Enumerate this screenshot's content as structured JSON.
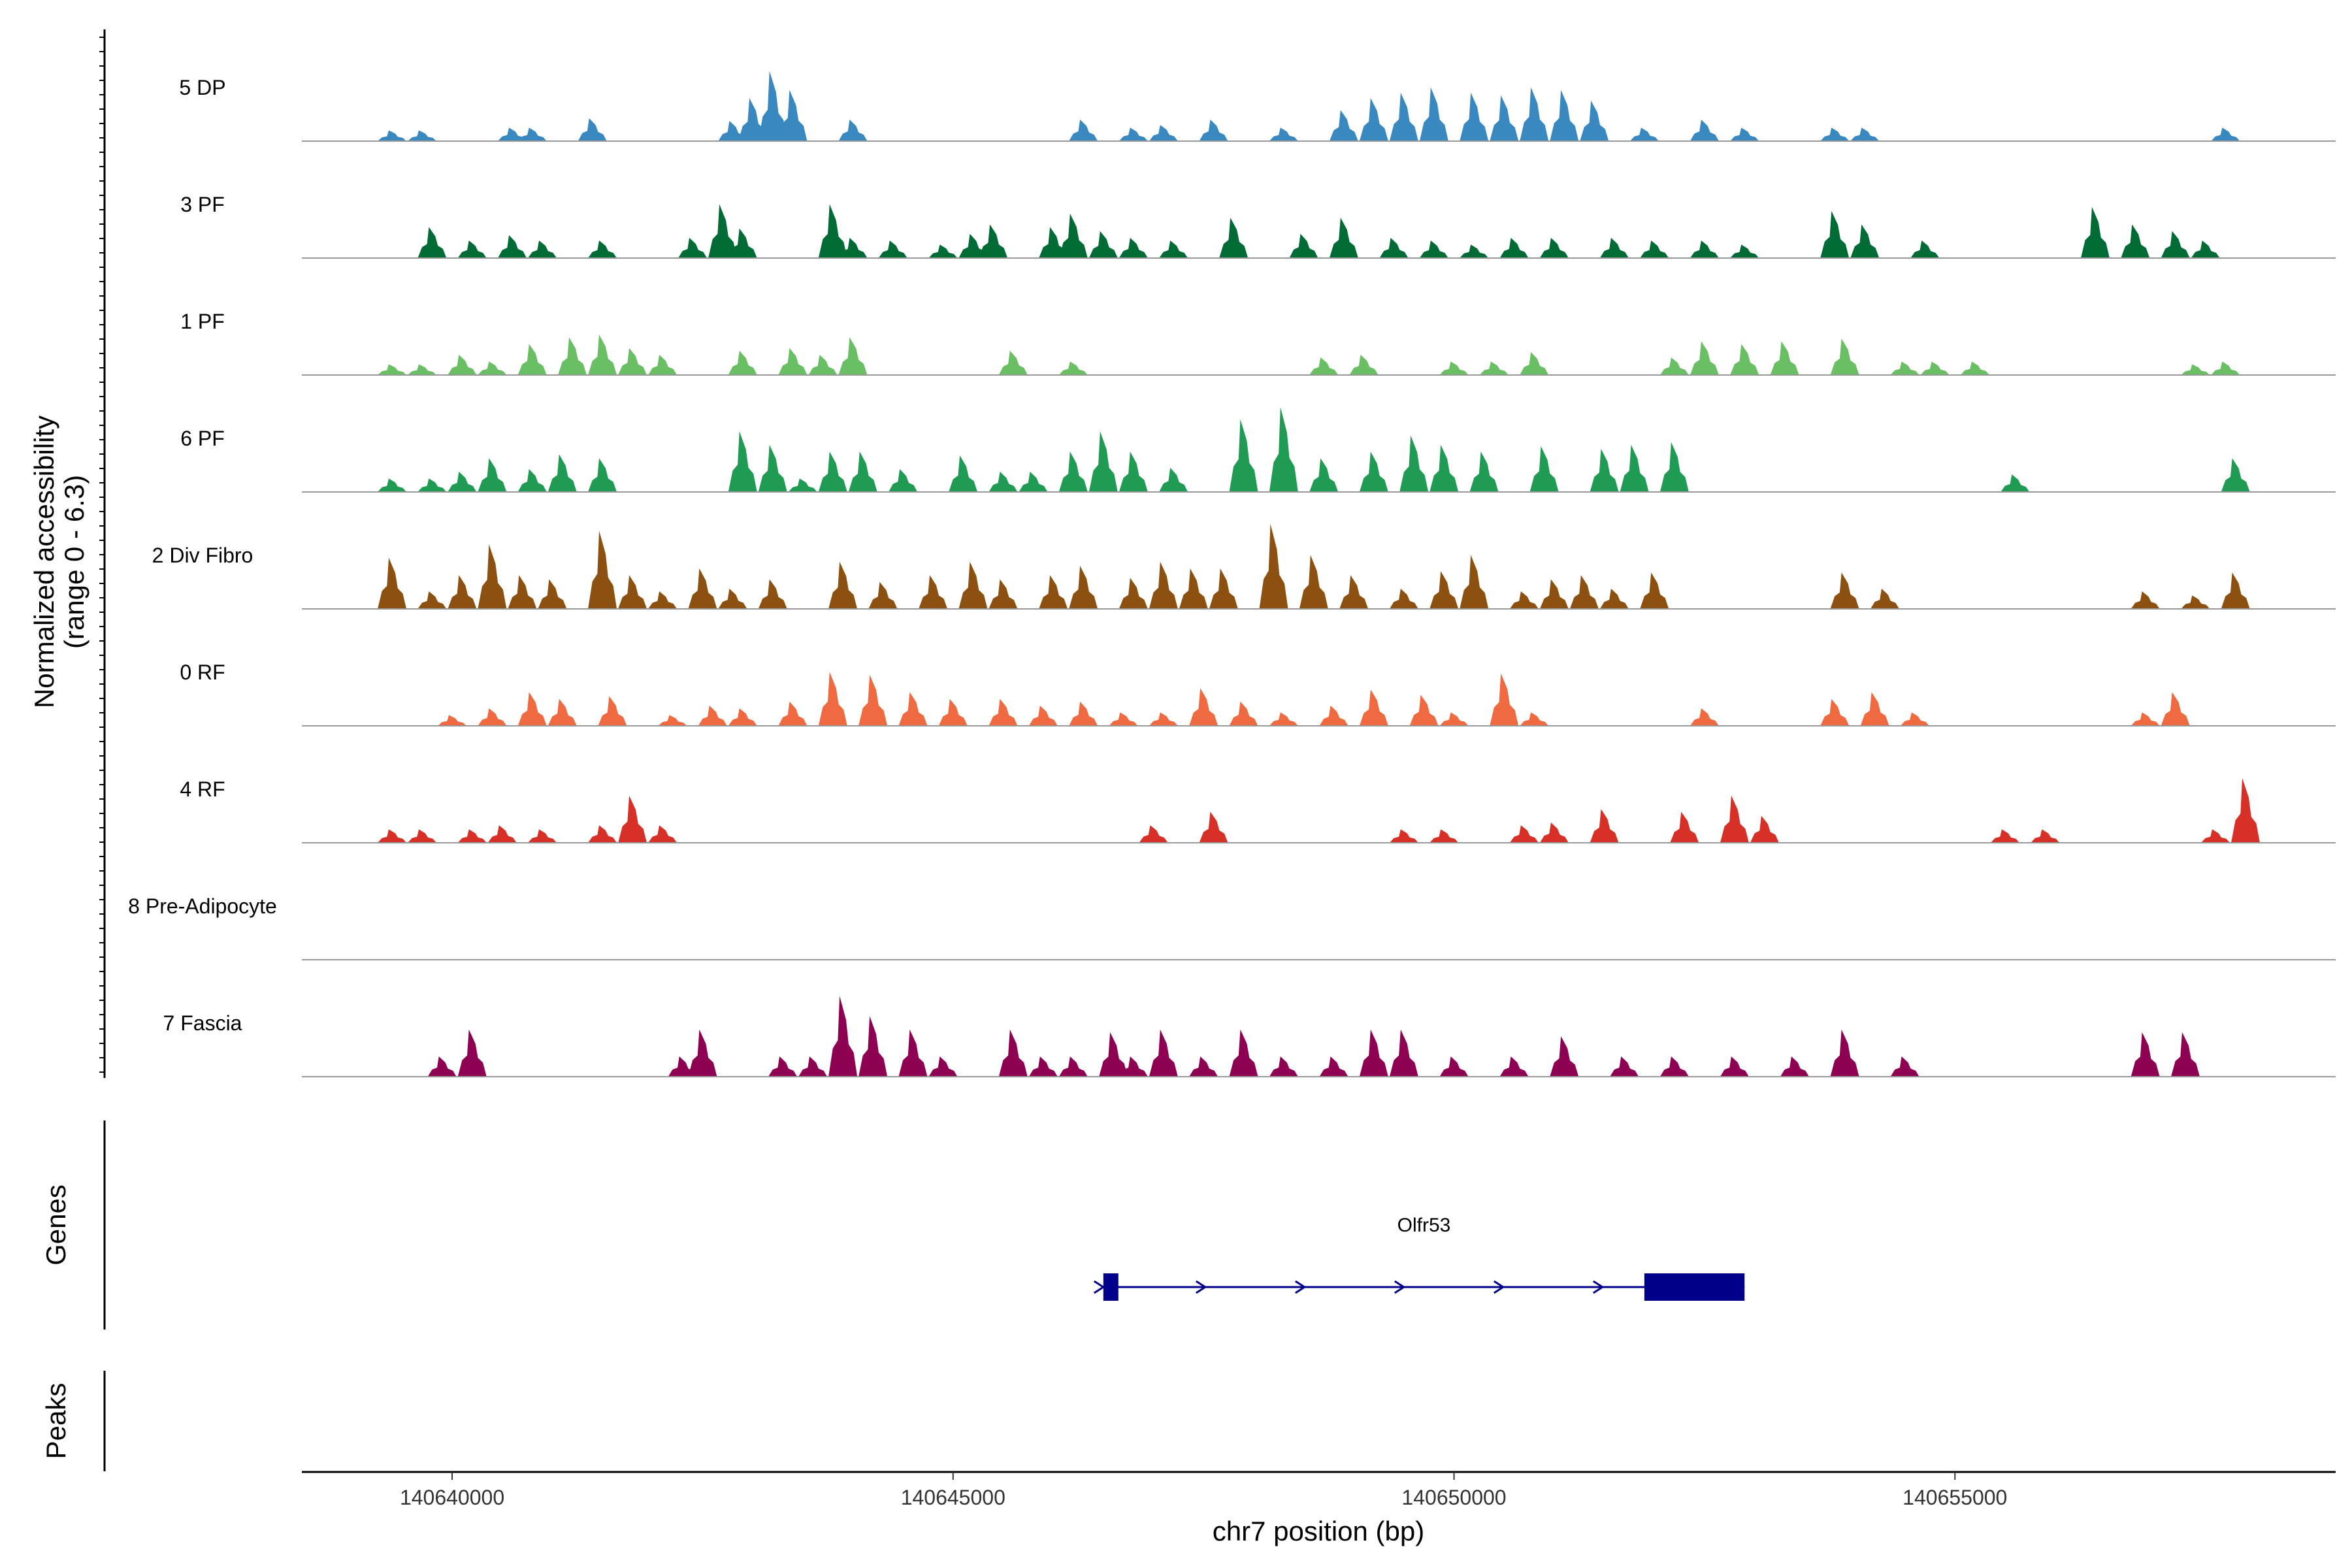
{
  "chart_data": {
    "type": "area",
    "title": "",
    "ylabel_line1": "Normalized accessibility",
    "ylabel_line2": "(range 0 - 6.3)",
    "ylim": [
      0,
      6.3
    ],
    "xlabel": "chr7 position (bp)",
    "xlim": [
      140638500,
      140658800
    ],
    "xticks": [
      {
        "value": 140640000,
        "label": "140640000"
      },
      {
        "value": 140645000,
        "label": "140645000"
      },
      {
        "value": 140650000,
        "label": "140650000"
      },
      {
        "value": 140655000,
        "label": "140655000"
      }
    ],
    "series": [
      {
        "name": "5 DP",
        "color": "#3A88C0",
        "peaks": [
          [
            140639400,
            0.8
          ],
          [
            140639700,
            0.8
          ],
          [
            140640600,
            1.0
          ],
          [
            140640800,
            1.0
          ],
          [
            140641400,
            1.7
          ],
          [
            140642800,
            1.5
          ],
          [
            140643000,
            3.2
          ],
          [
            140643200,
            5.2
          ],
          [
            140643400,
            3.8
          ],
          [
            140644000,
            1.6
          ],
          [
            140646300,
            1.6
          ],
          [
            140646800,
            1.0
          ],
          [
            140647100,
            1.2
          ],
          [
            140647600,
            1.6
          ],
          [
            140648300,
            1.0
          ],
          [
            140648900,
            2.3
          ],
          [
            140649200,
            3.2
          ],
          [
            140649500,
            3.6
          ],
          [
            140649800,
            4.0
          ],
          [
            140650200,
            3.6
          ],
          [
            140650500,
            3.4
          ],
          [
            140650800,
            4.0
          ],
          [
            140651100,
            3.8
          ],
          [
            140651400,
            3.0
          ],
          [
            140651900,
            1.0
          ],
          [
            140652500,
            1.6
          ],
          [
            140652900,
            1.0
          ],
          [
            140653800,
            1.0
          ],
          [
            140654100,
            1.0
          ],
          [
            140657700,
            1.0
          ]
        ]
      },
      {
        "name": "3 PF",
        "color": "#006B34",
        "peaks": [
          [
            140639800,
            2.3
          ],
          [
            140640200,
            1.3
          ],
          [
            140640600,
            1.7
          ],
          [
            140640900,
            1.3
          ],
          [
            140641500,
            1.3
          ],
          [
            140642400,
            1.5
          ],
          [
            140642700,
            4.0
          ],
          [
            140642900,
            2.2
          ],
          [
            140643800,
            4.0
          ],
          [
            140644000,
            1.5
          ],
          [
            140644400,
            1.3
          ],
          [
            140644900,
            1.0
          ],
          [
            140645200,
            1.8
          ],
          [
            140645400,
            2.5
          ],
          [
            140646000,
            2.3
          ],
          [
            140646200,
            3.3
          ],
          [
            140646500,
            2.0
          ],
          [
            140646800,
            1.5
          ],
          [
            140647200,
            1.3
          ],
          [
            140647800,
            3.0
          ],
          [
            140648500,
            1.8
          ],
          [
            140648900,
            3.0
          ],
          [
            140649400,
            1.5
          ],
          [
            140649800,
            1.3
          ],
          [
            140650200,
            1.0
          ],
          [
            140650600,
            1.5
          ],
          [
            140651000,
            1.5
          ],
          [
            140651600,
            1.5
          ],
          [
            140652000,
            1.3
          ],
          [
            140652500,
            1.3
          ],
          [
            140652900,
            1.0
          ],
          [
            140653800,
            3.5
          ],
          [
            140654100,
            2.5
          ],
          [
            140654700,
            1.3
          ],
          [
            140656400,
            3.8
          ],
          [
            140656800,
            2.5
          ],
          [
            140657200,
            2.0
          ],
          [
            140657500,
            1.3
          ]
        ]
      },
      {
        "name": "1 PF",
        "color": "#6ABE63",
        "peaks": [
          [
            140639400,
            0.8
          ],
          [
            140639700,
            0.8
          ],
          [
            140640100,
            1.5
          ],
          [
            140640400,
            1.0
          ],
          [
            140640800,
            2.3
          ],
          [
            140641200,
            2.8
          ],
          [
            140641500,
            3.0
          ],
          [
            140641800,
            2.0
          ],
          [
            140642100,
            1.5
          ],
          [
            140642900,
            1.8
          ],
          [
            140643400,
            2.0
          ],
          [
            140643700,
            1.5
          ],
          [
            140644000,
            2.8
          ],
          [
            140645600,
            1.8
          ],
          [
            140646200,
            1.0
          ],
          [
            140648700,
            1.3
          ],
          [
            140649100,
            1.5
          ],
          [
            140650000,
            1.0
          ],
          [
            140650400,
            1.0
          ],
          [
            140650800,
            1.7
          ],
          [
            140652200,
            1.3
          ],
          [
            140652500,
            2.5
          ],
          [
            140652900,
            2.3
          ],
          [
            140653300,
            2.5
          ],
          [
            140653900,
            2.7
          ],
          [
            140654500,
            1.0
          ],
          [
            140654800,
            1.0
          ],
          [
            140655200,
            1.0
          ],
          [
            140657400,
            0.8
          ],
          [
            140657700,
            1.0
          ]
        ]
      },
      {
        "name": "6 PF",
        "color": "#209B53",
        "peaks": [
          [
            140639400,
            1.0
          ],
          [
            140639800,
            1.0
          ],
          [
            140640100,
            1.5
          ],
          [
            140640400,
            2.5
          ],
          [
            140640800,
            1.7
          ],
          [
            140641100,
            2.8
          ],
          [
            140641500,
            2.5
          ],
          [
            140642900,
            4.5
          ],
          [
            140643200,
            3.5
          ],
          [
            140643500,
            1.0
          ],
          [
            140643800,
            3.0
          ],
          [
            140644100,
            3.0
          ],
          [
            140644500,
            1.7
          ],
          [
            140645100,
            2.7
          ],
          [
            140645500,
            1.5
          ],
          [
            140645800,
            1.5
          ],
          [
            140646200,
            3.0
          ],
          [
            140646500,
            4.5
          ],
          [
            140646800,
            3.0
          ],
          [
            140647200,
            1.8
          ],
          [
            140647900,
            5.4
          ],
          [
            140648300,
            6.3
          ],
          [
            140648700,
            2.5
          ],
          [
            140649200,
            3.0
          ],
          [
            140649600,
            4.2
          ],
          [
            140649900,
            3.5
          ],
          [
            140650300,
            3.0
          ],
          [
            140650900,
            3.4
          ],
          [
            140651500,
            3.2
          ],
          [
            140651800,
            3.5
          ],
          [
            140652200,
            3.7
          ],
          [
            140655600,
            1.3
          ],
          [
            140657800,
            2.5
          ]
        ]
      },
      {
        "name": "2 Div Fibro",
        "color": "#8C5010",
        "peaks": [
          [
            140639400,
            3.8
          ],
          [
            140639800,
            1.3
          ],
          [
            140640100,
            2.5
          ],
          [
            140640400,
            4.8
          ],
          [
            140640700,
            2.5
          ],
          [
            140641000,
            2.2
          ],
          [
            140641500,
            5.8
          ],
          [
            140641800,
            2.5
          ],
          [
            140642100,
            1.3
          ],
          [
            140642500,
            3.0
          ],
          [
            140642800,
            1.5
          ],
          [
            140643200,
            2.2
          ],
          [
            140643900,
            3.5
          ],
          [
            140644300,
            2.0
          ],
          [
            140644800,
            2.5
          ],
          [
            140645200,
            3.5
          ],
          [
            140645500,
            2.2
          ],
          [
            140646000,
            2.5
          ],
          [
            140646300,
            3.2
          ],
          [
            140646800,
            2.3
          ],
          [
            140647100,
            3.5
          ],
          [
            140647400,
            3.0
          ],
          [
            140647700,
            3.0
          ],
          [
            140648200,
            6.3
          ],
          [
            140648600,
            4.0
          ],
          [
            140649000,
            2.5
          ],
          [
            140649500,
            1.5
          ],
          [
            140649900,
            2.8
          ],
          [
            140650200,
            4.0
          ],
          [
            140650700,
            1.3
          ],
          [
            140651000,
            2.2
          ],
          [
            140651300,
            2.5
          ],
          [
            140651600,
            1.5
          ],
          [
            140652000,
            2.7
          ],
          [
            140653900,
            2.7
          ],
          [
            140654300,
            1.5
          ],
          [
            140656900,
            1.3
          ],
          [
            140657400,
            1.0
          ],
          [
            140657800,
            2.7
          ]
        ]
      },
      {
        "name": "0 RF",
        "color": "#F06A41",
        "peaks": [
          [
            140640000,
            0.8
          ],
          [
            140640400,
            1.3
          ],
          [
            140640800,
            2.5
          ],
          [
            140641100,
            2.0
          ],
          [
            140641600,
            2.2
          ],
          [
            140642200,
            0.8
          ],
          [
            140642600,
            1.5
          ],
          [
            140642900,
            1.3
          ],
          [
            140643400,
            1.8
          ],
          [
            140643800,
            4.0
          ],
          [
            140644200,
            3.8
          ],
          [
            140644600,
            2.5
          ],
          [
            140645000,
            2.0
          ],
          [
            140645500,
            2.0
          ],
          [
            140645900,
            1.5
          ],
          [
            140646300,
            1.8
          ],
          [
            140646700,
            1.0
          ],
          [
            140647100,
            1.0
          ],
          [
            140647500,
            2.8
          ],
          [
            140647900,
            1.8
          ],
          [
            140648300,
            1.0
          ],
          [
            140648800,
            1.5
          ],
          [
            140649200,
            2.7
          ],
          [
            140649700,
            2.3
          ],
          [
            140650000,
            1.0
          ],
          [
            140650500,
            3.9
          ],
          [
            140650800,
            1.0
          ],
          [
            140652500,
            1.3
          ],
          [
            140653800,
            2.0
          ],
          [
            140654200,
            2.5
          ],
          [
            140654600,
            1.0
          ],
          [
            140656900,
            1.0
          ],
          [
            140657200,
            2.5
          ]
        ]
      },
      {
        "name": "4 RF",
        "color": "#D73027",
        "peaks": [
          [
            140639400,
            1.0
          ],
          [
            140639700,
            1.0
          ],
          [
            140640200,
            1.0
          ],
          [
            140640500,
            1.3
          ],
          [
            140640900,
            1.0
          ],
          [
            140641500,
            1.3
          ],
          [
            140641800,
            3.5
          ],
          [
            140642100,
            1.3
          ],
          [
            140647000,
            1.3
          ],
          [
            140647600,
            2.3
          ],
          [
            140649500,
            1.0
          ],
          [
            140649900,
            1.0
          ],
          [
            140650700,
            1.3
          ],
          [
            140651000,
            1.5
          ],
          [
            140651500,
            2.5
          ],
          [
            140652300,
            2.3
          ],
          [
            140652800,
            3.5
          ],
          [
            140653100,
            2.0
          ],
          [
            140655500,
            1.0
          ],
          [
            140655900,
            1.0
          ],
          [
            140657600,
            1.0
          ],
          [
            140657900,
            4.8
          ]
        ]
      },
      {
        "name": "8 Pre-Adipocyte",
        "color": "#666666",
        "peaks": []
      },
      {
        "name": "7 Fascia",
        "color": "#8E0152",
        "peaks": [
          [
            140639900,
            1.5
          ],
          [
            140640200,
            3.5
          ],
          [
            140642300,
            1.5
          ],
          [
            140642500,
            3.5
          ],
          [
            140643300,
            1.5
          ],
          [
            140643600,
            1.5
          ],
          [
            140643900,
            6.0
          ],
          [
            140644200,
            4.5
          ],
          [
            140644600,
            3.5
          ],
          [
            140644900,
            1.5
          ],
          [
            140645600,
            3.5
          ],
          [
            140645900,
            1.5
          ],
          [
            140646200,
            1.5
          ],
          [
            140646600,
            3.3
          ],
          [
            140646800,
            1.5
          ],
          [
            140647100,
            3.5
          ],
          [
            140647500,
            1.5
          ],
          [
            140647900,
            3.5
          ],
          [
            140648300,
            1.5
          ],
          [
            140648800,
            1.5
          ],
          [
            140649200,
            3.5
          ],
          [
            140649500,
            3.5
          ],
          [
            140650000,
            1.5
          ],
          [
            140650600,
            1.5
          ],
          [
            140651100,
            3.0
          ],
          [
            140651700,
            1.5
          ],
          [
            140652200,
            1.5
          ],
          [
            140652800,
            1.5
          ],
          [
            140653400,
            1.5
          ],
          [
            140653900,
            3.5
          ],
          [
            140654500,
            1.5
          ],
          [
            140656900,
            3.3
          ],
          [
            140657300,
            3.3
          ]
        ]
      }
    ],
    "genes_track": {
      "label": "Genes",
      "gene": {
        "name": "Olfr53",
        "start": 140646500,
        "end": 140652900,
        "strand": "+",
        "exons": [
          [
            140646500,
            140646650
          ],
          [
            140651900,
            140652900
          ]
        ]
      },
      "color": "#00008B"
    },
    "peaks_track": {
      "label": "Peaks",
      "peaks": []
    },
    "grid": false,
    "legend": "none"
  }
}
